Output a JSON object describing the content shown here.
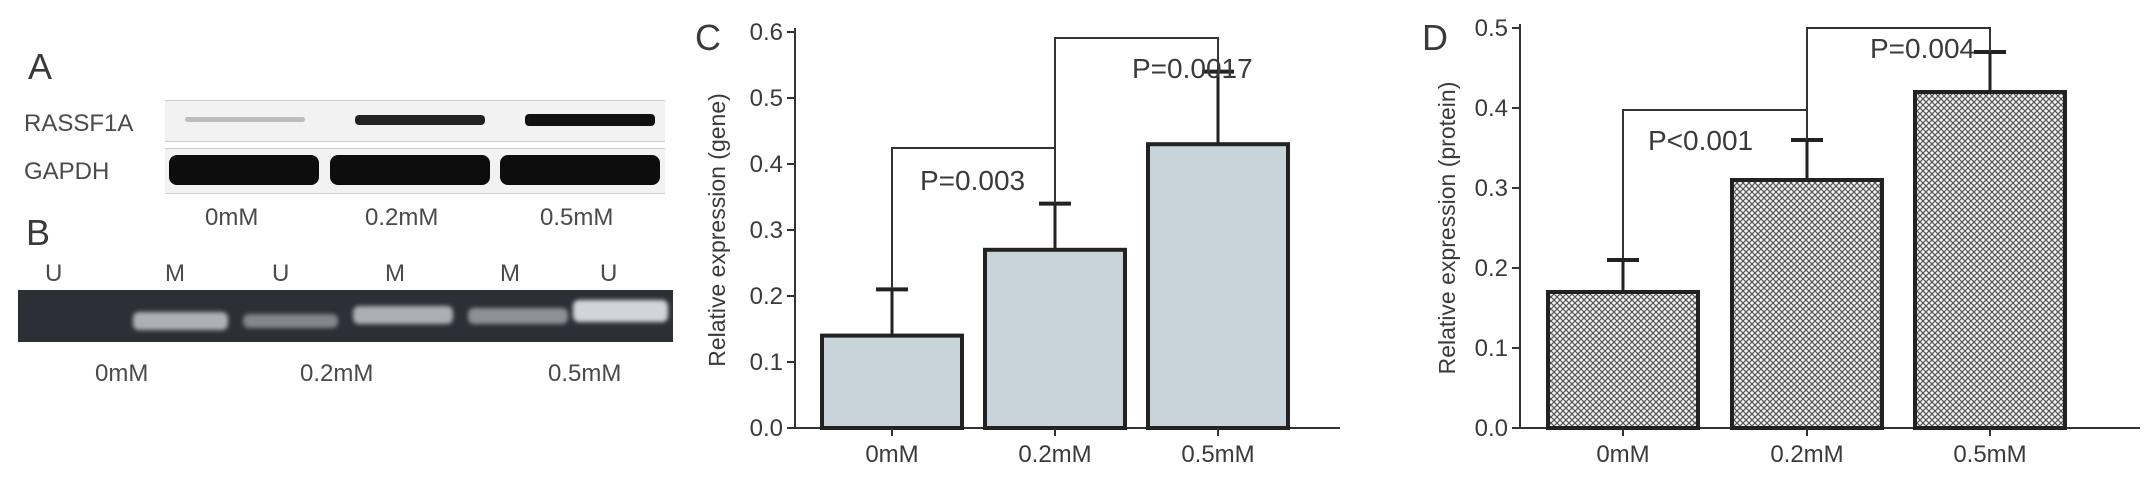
{
  "panel_a": {
    "letter": "A",
    "rows": [
      "RASSF1A",
      "GAPDH"
    ],
    "conditions": [
      "0mM",
      "0.2mM",
      "0.5mM"
    ]
  },
  "panel_b": {
    "letter": "B",
    "lanes": [
      "U",
      "M",
      "U",
      "M",
      "M",
      "U"
    ],
    "conditions": [
      "0mM",
      "0.2mM",
      "0.5mM"
    ]
  },
  "colors": {
    "bar_c_fill": "#c8d3da",
    "bar_d_hatch": "#555555",
    "axis": "#333333"
  },
  "chart_data": [
    {
      "panel": "C",
      "type": "bar",
      "categories": [
        "0mM",
        "0.2mM",
        "0.5mM"
      ],
      "values": [
        0.14,
        0.27,
        0.43
      ],
      "errors": [
        0.07,
        0.07,
        0.11
      ],
      "ylabel": "Relative expression (gene)",
      "ylim": [
        0,
        0.6
      ],
      "yticks": [
        "0.0",
        "0.1",
        "0.2",
        "0.3",
        "0.4",
        "0.5",
        "0.6"
      ],
      "annotations": [
        {
          "text": "P=0.003",
          "from": "0mM",
          "to": "0.2mM"
        },
        {
          "text": "P=0.0017",
          "from": "0.2mM",
          "to": "0.5mM"
        }
      ]
    },
    {
      "panel": "D",
      "type": "bar",
      "categories": [
        "0mM",
        "0.2mM",
        "0.5mM"
      ],
      "values": [
        0.17,
        0.31,
        0.42
      ],
      "errors": [
        0.04,
        0.05,
        0.05
      ],
      "ylabel": "Relative expression (protein)",
      "ylim": [
        0,
        0.5
      ],
      "yticks": [
        "0.0",
        "0.1",
        "0.2",
        "0.3",
        "0.4",
        "0.5"
      ],
      "annotations": [
        {
          "text": "P<0.001",
          "from": "0mM",
          "to": "0.2mM"
        },
        {
          "text": "P=0.004",
          "from": "0.2mM",
          "to": "0.5mM"
        }
      ]
    }
  ]
}
